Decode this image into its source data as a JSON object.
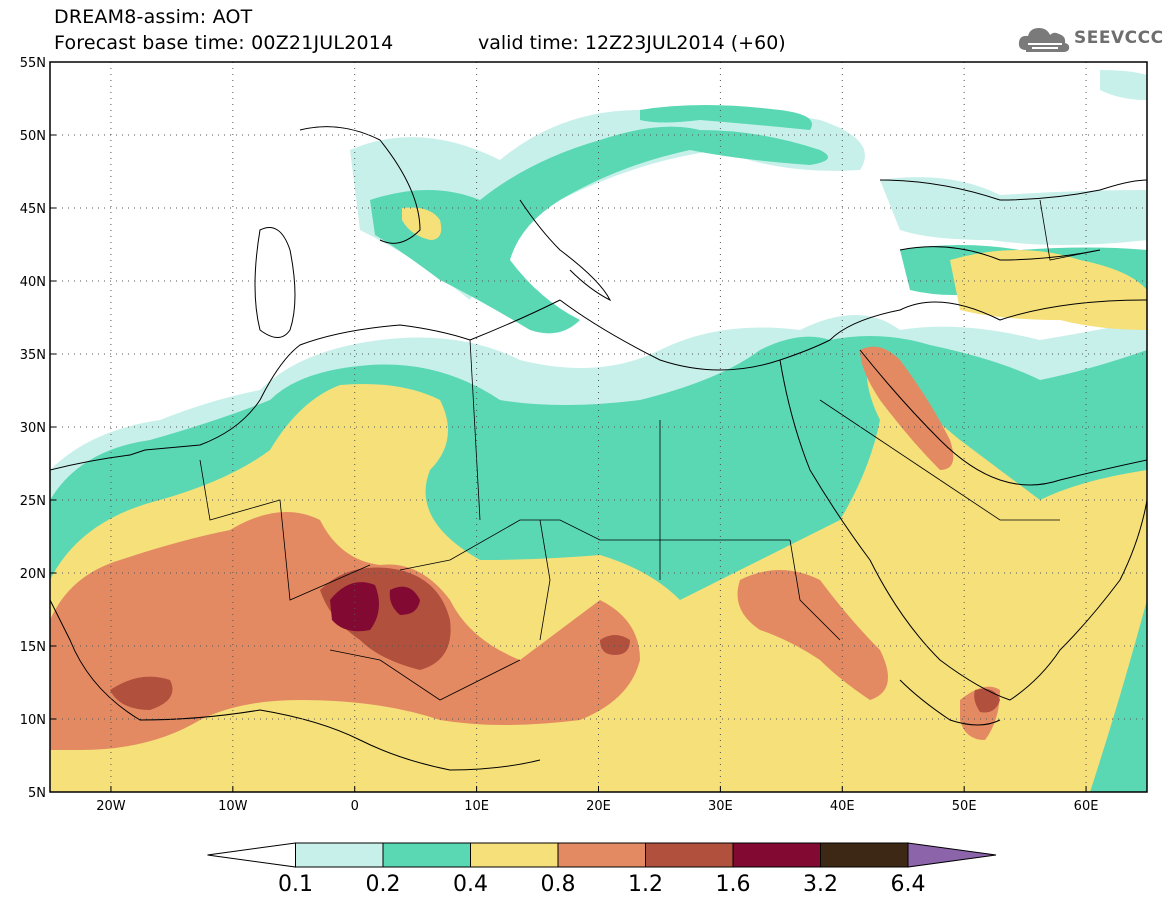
{
  "header": {
    "title_line1": "DREAM8-assim: AOT",
    "title_line2": "Forecast base time: 00Z21JUL2014",
    "valid_time": "valid time: 12Z23JUL2014 (+60)",
    "logo_text": "SEEVCCC",
    "logo_icon": "cloud-icon"
  },
  "map": {
    "projection": "lat-lon",
    "lon_range": [
      -25,
      65
    ],
    "lat_range": [
      5,
      55
    ],
    "lat_ticks": [
      {
        "value": 55,
        "label": "55N"
      },
      {
        "value": 50,
        "label": "50N"
      },
      {
        "value": 45,
        "label": "45N"
      },
      {
        "value": 40,
        "label": "40N"
      },
      {
        "value": 35,
        "label": "35N"
      },
      {
        "value": 30,
        "label": "30N"
      },
      {
        "value": 25,
        "label": "25N"
      },
      {
        "value": 20,
        "label": "20N"
      },
      {
        "value": 15,
        "label": "15N"
      },
      {
        "value": 10,
        "label": "10N"
      },
      {
        "value": 5,
        "label": "5N"
      }
    ],
    "lon_ticks": [
      {
        "value": -20,
        "label": "20W"
      },
      {
        "value": -10,
        "label": "10W"
      },
      {
        "value": 0,
        "label": "0"
      },
      {
        "value": 10,
        "label": "10E"
      },
      {
        "value": 20,
        "label": "20E"
      },
      {
        "value": 30,
        "label": "30E"
      },
      {
        "value": 40,
        "label": "40E"
      },
      {
        "value": 50,
        "label": "50E"
      },
      {
        "value": 60,
        "label": "60E"
      }
    ],
    "grid": "dotted"
  },
  "colorbar": {
    "labels": [
      "0.1",
      "0.2",
      "0.4",
      "0.8",
      "1.2",
      "1.6",
      "3.2",
      "6.4"
    ],
    "colors": [
      "#ffffff",
      "#c8f0ea",
      "#5ad8b4",
      "#f5e07a",
      "#e48a62",
      "#b2503e",
      "#820a32",
      "#3c2814",
      "#8c64aa"
    ]
  }
}
